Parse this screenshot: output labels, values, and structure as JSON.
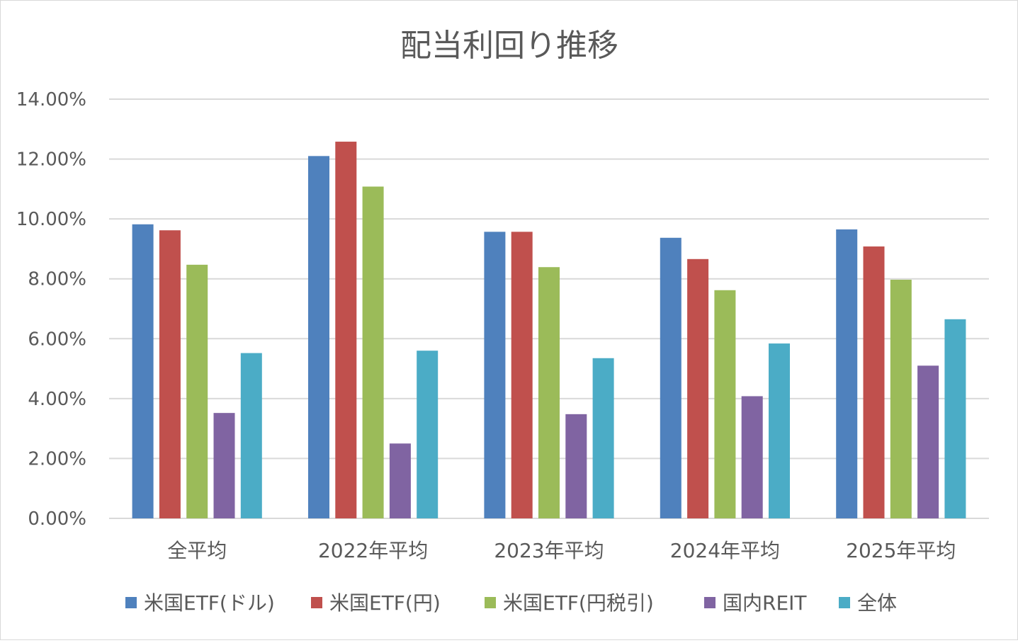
{
  "chart_data": {
    "type": "bar",
    "title": "配当利回り推移",
    "categories": [
      "全平均",
      "2022年平均",
      "2023年平均",
      "2024年平均",
      "2025年平均"
    ],
    "series": [
      {
        "name": "米国ETF(ドル)",
        "color": "#4F81BD",
        "values": [
          9.82,
          12.1,
          9.57,
          9.37,
          9.65
        ]
      },
      {
        "name": "米国ETF(円)",
        "color": "#C0504D",
        "values": [
          9.62,
          12.58,
          9.57,
          8.66,
          9.08
        ]
      },
      {
        "name": "米国ETF(円税引)",
        "color": "#9BBB59",
        "values": [
          8.47,
          11.08,
          8.39,
          7.62,
          7.97
        ]
      },
      {
        "name": "国内REIT",
        "color": "#8064A2",
        "values": [
          3.52,
          2.5,
          3.48,
          4.08,
          5.1
        ]
      },
      {
        "name": "全体",
        "color": "#4BACC6",
        "values": [
          5.52,
          5.6,
          5.35,
          5.84,
          6.65
        ]
      }
    ],
    "ylim": [
      0,
      14
    ],
    "yticks": [
      "0.00%",
      "2.00%",
      "4.00%",
      "6.00%",
      "8.00%",
      "10.00%",
      "12.00%",
      "14.00%"
    ],
    "grid": true,
    "legend": "bottom"
  }
}
